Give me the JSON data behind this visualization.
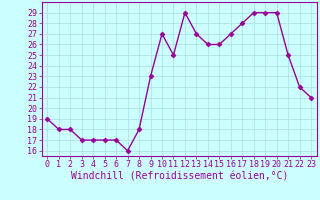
{
  "x": [
    0,
    1,
    2,
    3,
    4,
    5,
    6,
    7,
    8,
    9,
    10,
    11,
    12,
    13,
    14,
    15,
    16,
    17,
    18,
    19,
    20,
    21,
    22,
    23
  ],
  "y": [
    19,
    18,
    18,
    17,
    17,
    17,
    17,
    16,
    18,
    23,
    27,
    25,
    29,
    27,
    26,
    26,
    27,
    28,
    29,
    29,
    29,
    25,
    22,
    21
  ],
  "line_color": "#990099",
  "marker": "D",
  "marker_size": 2.5,
  "bg_color": "#ccffff",
  "grid_color": "#aadddd",
  "xlabel": "Windchill (Refroidissement éolien,°C)",
  "xlabel_color": "#990099",
  "xlabel_fontsize": 7.0,
  "ylim": [
    15.5,
    30.0
  ],
  "xlim": [
    -0.5,
    23.5
  ],
  "yticks": [
    16,
    17,
    18,
    19,
    20,
    21,
    22,
    23,
    24,
    25,
    26,
    27,
    28,
    29
  ],
  "xticks": [
    0,
    1,
    2,
    3,
    4,
    5,
    6,
    7,
    8,
    9,
    10,
    11,
    12,
    13,
    14,
    15,
    16,
    17,
    18,
    19,
    20,
    21,
    22,
    23
  ],
  "tick_fontsize": 6.0,
  "tick_color": "#990099",
  "spine_color": "#990099",
  "linewidth": 1.0
}
